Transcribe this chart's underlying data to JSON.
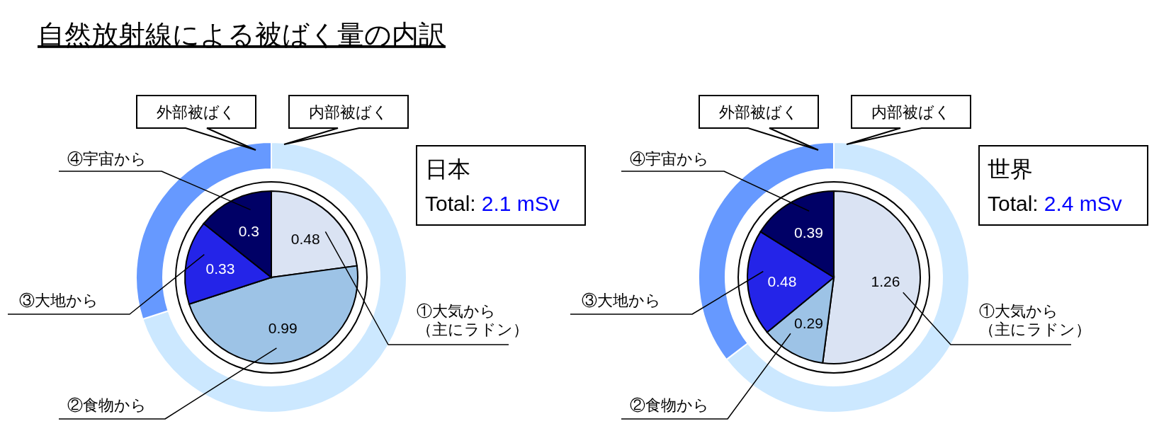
{
  "chart_data": [
    {
      "type": "donut",
      "title": "自然放射線による被ばく量の内訳",
      "categories": [
        "内部被ばく",
        "外部被ばく"
      ],
      "values": [
        70,
        30
      ],
      "colors": [
        "#cce8ff",
        "#6699ff"
      ]
    },
    {
      "type": "pie",
      "subtitle": "日本",
      "annotations": [
        "Total:",
        "2.1 mSv"
      ],
      "categories": [
        "①大気から（主にラドン）",
        "②食物から",
        "③大地から",
        "④宇宙から"
      ],
      "values": [
        0.48,
        0.99,
        0.33,
        0.3
      ],
      "colors": [
        "#dae3f3",
        "#9dc3e6",
        "#2424e8",
        "#000066"
      ],
      "data_labels": true
    },
    {
      "type": "donut",
      "categories": [
        "内部被ばく",
        "外部被ばく"
      ],
      "values": [
        64.6,
        35.4
      ],
      "colors": [
        "#cce8ff",
        "#6699ff"
      ]
    },
    {
      "type": "pie",
      "subtitle": "世界",
      "annotations": [
        "Total:",
        "2.4 mSv"
      ],
      "categories": [
        "①大気から（主にラドン）",
        "②食物から",
        "③大地から",
        "④宇宙から"
      ],
      "values": [
        1.26,
        0.29,
        0.48,
        0.39
      ],
      "colors": [
        "#dae3f3",
        "#9dc3e6",
        "#2424e8",
        "#000066"
      ],
      "data_labels": true
    }
  ]
}
